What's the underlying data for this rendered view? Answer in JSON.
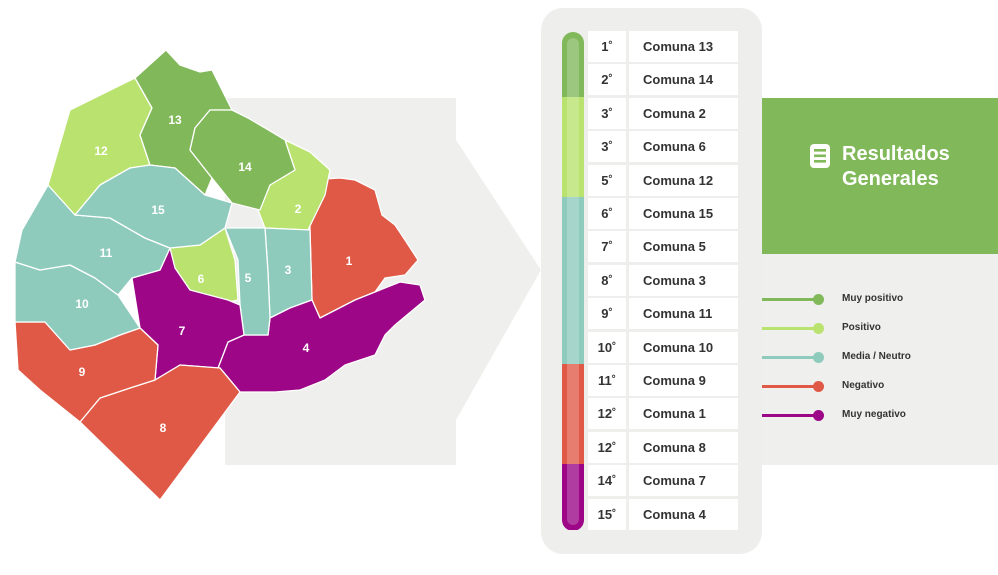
{
  "colors": {
    "muy_positivo": "#80b85a",
    "positivo": "#b9e26e",
    "media_neutro": "#8ecbbd",
    "negativo": "#e05946",
    "muy_negativo": "#9c0687",
    "background_arrow": "#efefed",
    "panel": "#eeeeec",
    "results_box": "#80b85a"
  },
  "map": {
    "comunas": [
      {
        "id": "1",
        "label": "1",
        "category": "negativo"
      },
      {
        "id": "2",
        "label": "2",
        "category": "positivo"
      },
      {
        "id": "3",
        "label": "3",
        "category": "media_neutro"
      },
      {
        "id": "4",
        "label": "4",
        "category": "muy_negativo"
      },
      {
        "id": "5",
        "label": "5",
        "category": "media_neutro"
      },
      {
        "id": "6",
        "label": "6",
        "category": "positivo"
      },
      {
        "id": "7",
        "label": "7",
        "category": "muy_negativo"
      },
      {
        "id": "8",
        "label": "8",
        "category": "negativo"
      },
      {
        "id": "9",
        "label": "9",
        "category": "negativo"
      },
      {
        "id": "10",
        "label": "10",
        "category": "media_neutro"
      },
      {
        "id": "11",
        "label": "11",
        "category": "media_neutro"
      },
      {
        "id": "12",
        "label": "12",
        "category": "positivo"
      },
      {
        "id": "13",
        "label": "13",
        "category": "muy_positivo"
      },
      {
        "id": "14",
        "label": "14",
        "category": "muy_positivo"
      },
      {
        "id": "15",
        "label": "15",
        "category": "media_neutro"
      }
    ]
  },
  "ranking": [
    {
      "rank": "1˚",
      "name": "Comuna 13",
      "category": "muy_positivo"
    },
    {
      "rank": "2˚",
      "name": "Comuna 14",
      "category": "muy_positivo"
    },
    {
      "rank": "3˚",
      "name": "Comuna 2",
      "category": "positivo"
    },
    {
      "rank": "3˚",
      "name": "Comuna 6",
      "category": "positivo"
    },
    {
      "rank": "5˚",
      "name": "Comuna 12",
      "category": "positivo"
    },
    {
      "rank": "6˚",
      "name": "Comuna 15",
      "category": "media_neutro"
    },
    {
      "rank": "7˚",
      "name": "Comuna 5",
      "category": "media_neutro"
    },
    {
      "rank": "8˚",
      "name": "Comuna 3",
      "category": "media_neutro"
    },
    {
      "rank": "9˚",
      "name": "Comuna 11",
      "category": "media_neutro"
    },
    {
      "rank": "10˚",
      "name": "Comuna 10",
      "category": "media_neutro"
    },
    {
      "rank": "11˚",
      "name": "Comuna 9",
      "category": "negativo"
    },
    {
      "rank": "12˚",
      "name": "Comuna 1",
      "category": "negativo"
    },
    {
      "rank": "12˚",
      "name": "Comuna 8",
      "category": "negativo"
    },
    {
      "rank": "14˚",
      "name": "Comuna 7",
      "category": "muy_negativo"
    },
    {
      "rank": "15˚",
      "name": "Comuna 4",
      "category": "muy_negativo"
    }
  ],
  "results": {
    "title_line1": "Resultados",
    "title_line2": "Generales",
    "icon": "document-list-icon"
  },
  "legend": [
    {
      "label": "Muy positivo",
      "category": "muy_positivo"
    },
    {
      "label": "Positivo",
      "category": "positivo"
    },
    {
      "label": "Media / Neutro",
      "category": "media_neutro"
    },
    {
      "label": "Negativo",
      "category": "negativo"
    },
    {
      "label": "Muy negativo",
      "category": "muy_negativo"
    }
  ]
}
